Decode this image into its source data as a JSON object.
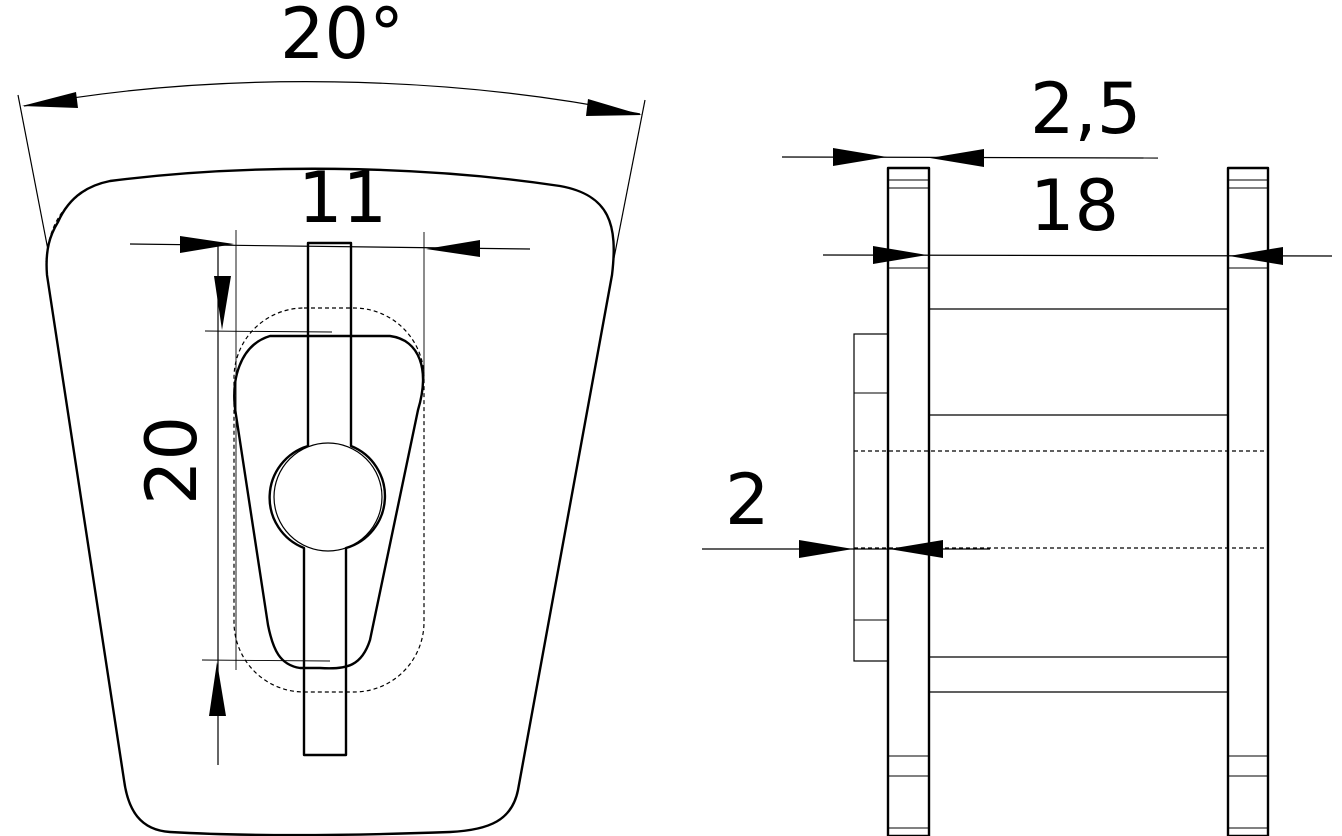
{
  "dimensions": {
    "angle": "20°",
    "width_11": "11",
    "height_20": "20",
    "thickness_2_5": "2,5",
    "spacing_18": "18",
    "offset_2": "2"
  }
}
